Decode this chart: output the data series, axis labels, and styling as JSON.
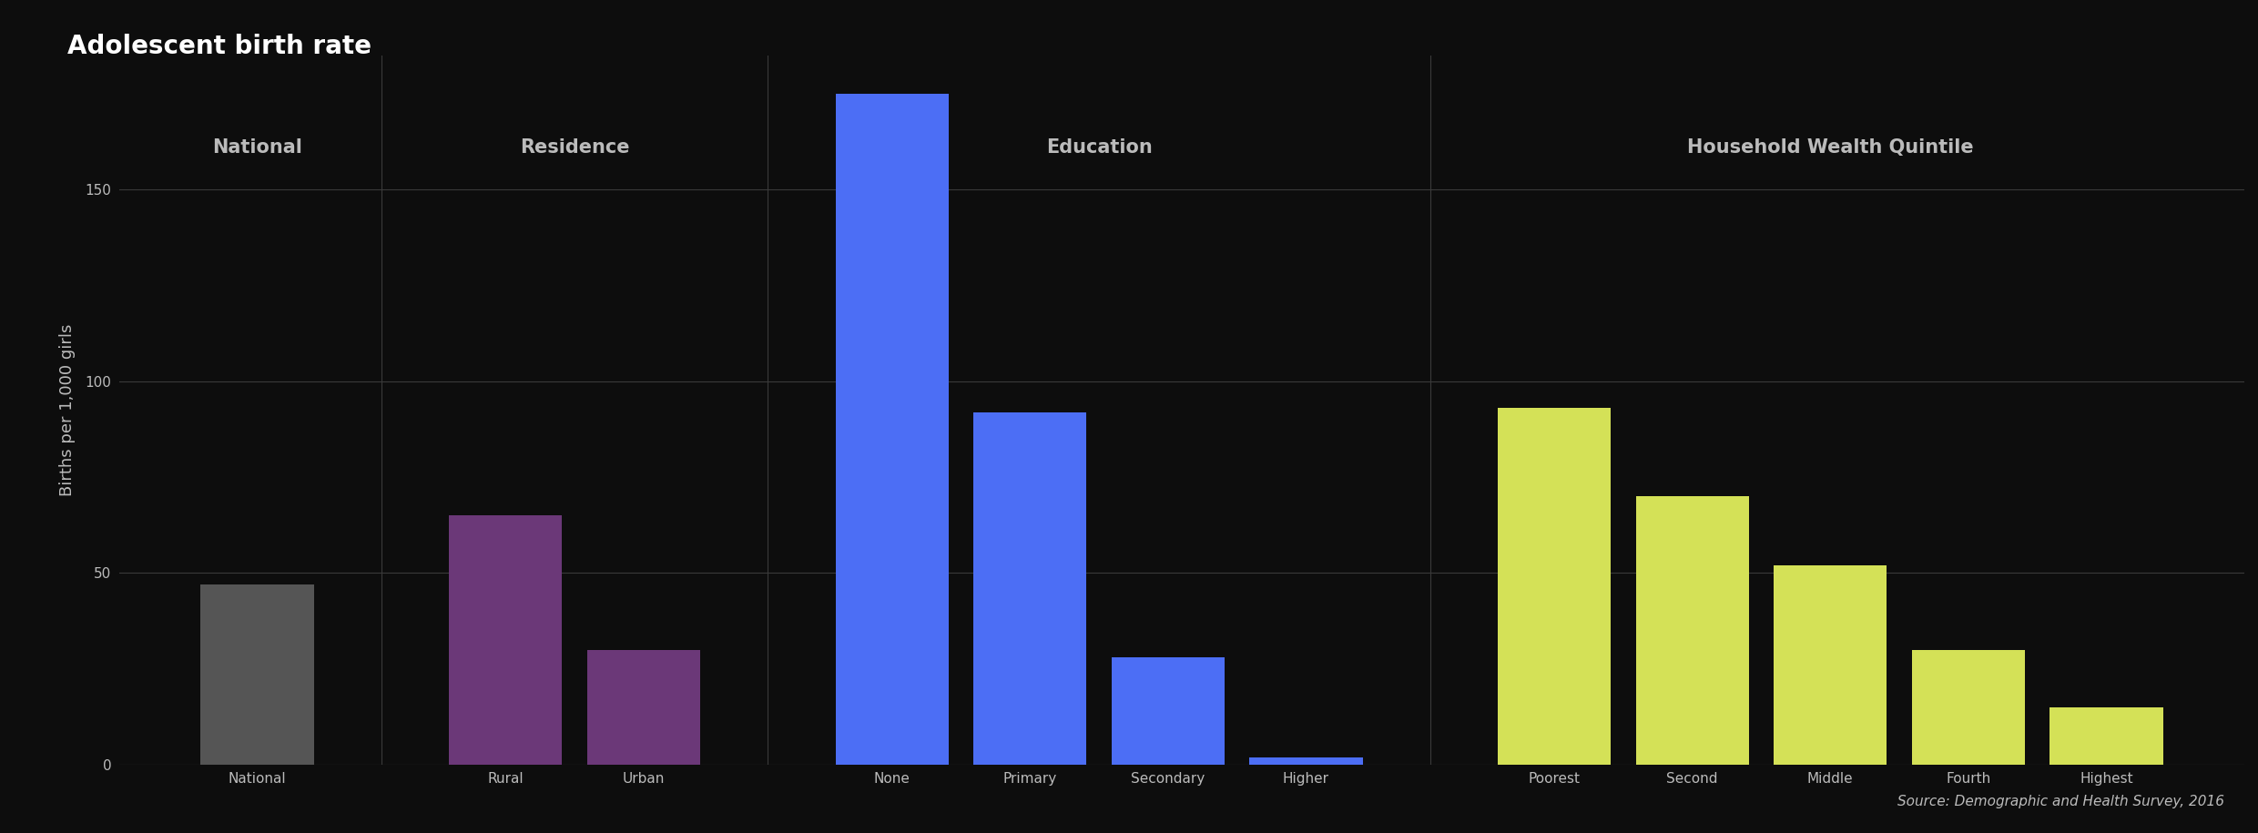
{
  "title": "Adolescent birth rate",
  "ylabel": "Births per 1,000 girls",
  "source": "Source: Demographic and Health Survey, 2016",
  "background_color": "#0d0d0d",
  "text_color": "#bbbbbb",
  "grid_color": "#3a3a3a",
  "ylim": [
    0,
    185
  ],
  "yticks": [
    0,
    50,
    100,
    150
  ],
  "groups": [
    {
      "label": "National",
      "bars": [
        {
          "x_label": "National",
          "value": 47,
          "color": "#555555"
        }
      ]
    },
    {
      "label": "Residence",
      "bars": [
        {
          "x_label": "Rural",
          "value": 65,
          "color": "#6b3878"
        },
        {
          "x_label": "Urban",
          "value": 30,
          "color": "#6b3878"
        }
      ]
    },
    {
      "label": "Education",
      "bars": [
        {
          "x_label": "None",
          "value": 175,
          "color": "#4c6ef5"
        },
        {
          "x_label": "Primary",
          "value": 92,
          "color": "#4c6ef5"
        },
        {
          "x_label": "Secondary",
          "value": 28,
          "color": "#4c6ef5"
        },
        {
          "x_label": "Higher",
          "value": 2,
          "color": "#4c6ef5"
        }
      ]
    },
    {
      "label": "Household Wealth Quintile",
      "bars": [
        {
          "x_label": "Poorest",
          "value": 93,
          "color": "#d4e157"
        },
        {
          "x_label": "Second",
          "value": 70,
          "color": "#d4e157"
        },
        {
          "x_label": "Middle",
          "value": 52,
          "color": "#d4e157"
        },
        {
          "x_label": "Fourth",
          "value": 30,
          "color": "#d4e157"
        },
        {
          "x_label": "Highest",
          "value": 15,
          "color": "#d4e157"
        }
      ]
    }
  ],
  "title_fontsize": 20,
  "group_label_fontsize": 15,
  "tick_fontsize": 11,
  "ylabel_fontsize": 13,
  "source_fontsize": 11
}
